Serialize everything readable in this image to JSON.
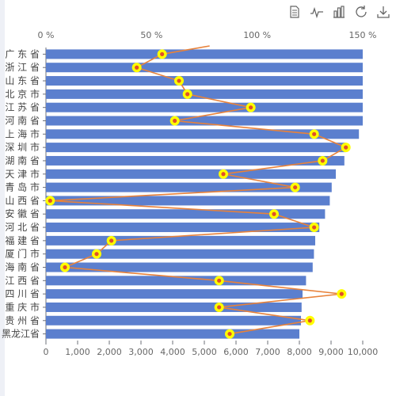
{
  "toolbox": {
    "items": [
      {
        "name": "data-view-icon"
      },
      {
        "name": "line-chart-icon"
      },
      {
        "name": "bar-chart-icon"
      },
      {
        "name": "restore-icon"
      },
      {
        "name": "save-image-icon"
      }
    ]
  },
  "colors": {
    "bar": "#5b7fce",
    "line": "#e8823a",
    "point_ring": "#ffff00",
    "point_center": "#e0502a",
    "axis_text": "#666666",
    "grid": "#eeeeee"
  },
  "chart_data": {
    "type": "bar",
    "categories": [
      "广东省",
      "浙江省",
      "山东省",
      "北京市",
      "江苏省",
      "河南省",
      "上海市",
      "深圳市",
      "湖南省",
      "天津市",
      "青岛市",
      "山西省",
      "安徽省",
      "河北省",
      "福建省",
      "厦门市",
      "海南省",
      "江西省",
      "四川省",
      "重庆市",
      "贵州省",
      "黑龙江省"
    ],
    "category_labels_shown": [
      "广 东 省",
      "浙 江 省",
      "山 东 省",
      "北 京 市",
      "江 苏 省",
      "河 南 省",
      "上 海 市",
      "深 圳 市",
      "湖 南 省",
      "天 津 市",
      "青 岛 市",
      "山 西 省",
      "安 徽 省",
      "河 北 省",
      "福 建 省",
      "厦 门 市",
      "海 南 省",
      "江 西 省",
      "四 川 省",
      "重 庆 市",
      "贵 州 省",
      "黑龙江省"
    ],
    "bar_values": [
      10000,
      10000,
      10000,
      10000,
      10000,
      10000,
      9880,
      9460,
      9420,
      9150,
      9020,
      8960,
      8810,
      8630,
      8500,
      8460,
      8420,
      8210,
      8100,
      8070,
      8050,
      8000
    ],
    "line_values": [
      55,
      43,
      63,
      67,
      97,
      61,
      127,
      142,
      131,
      84,
      118,
      2,
      108,
      127,
      31,
      24,
      9,
      82,
      140,
      82,
      125,
      87
    ],
    "bar_axis": {
      "min": 0,
      "max": 10000,
      "ticks": [
        "0",
        "1,000",
        "2,000",
        "3,000",
        "4,000",
        "5,000",
        "6,000",
        "7,000",
        "8,000",
        "9,000",
        "10,000"
      ]
    },
    "line_axis": {
      "min": 0,
      "max": 150,
      "ticks": [
        "0 %",
        "50 %",
        "100 %",
        "150 %"
      ]
    }
  }
}
